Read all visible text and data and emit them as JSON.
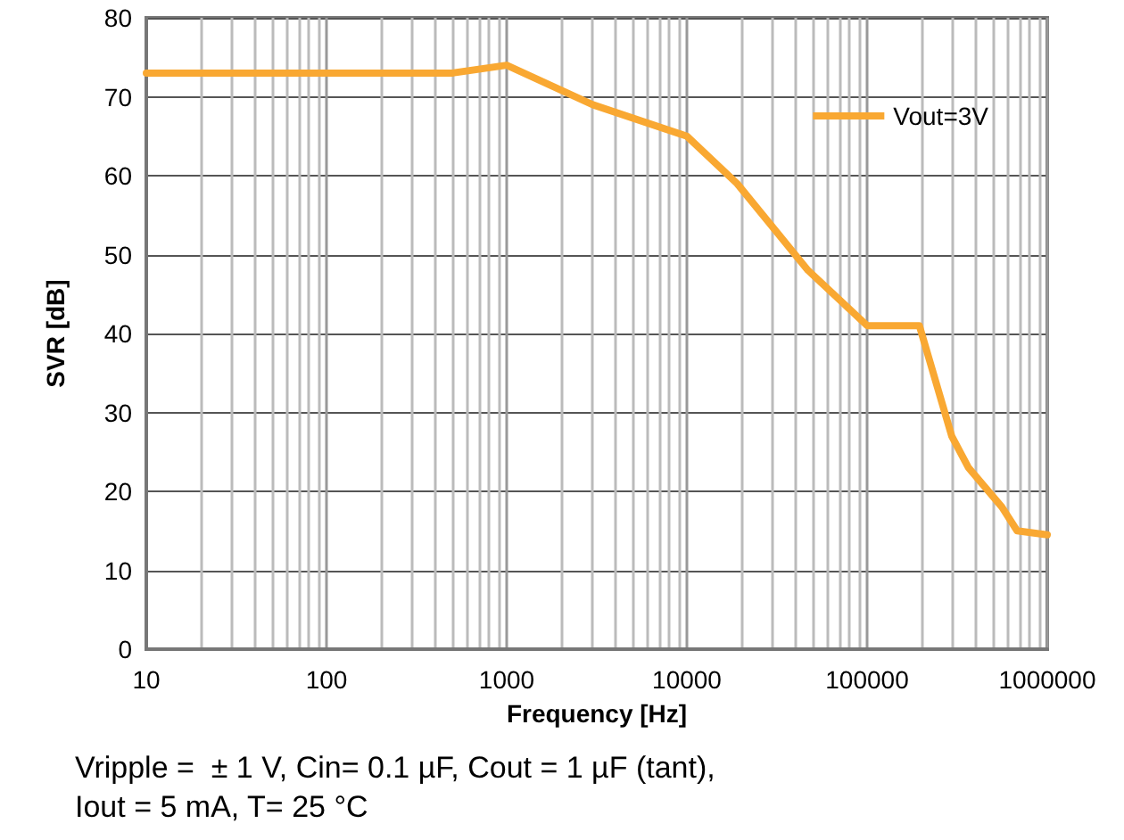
{
  "chart_data": {
    "type": "line",
    "xlabel": "Frequency [Hz]",
    "ylabel": "SVR [dB]",
    "series": [
      {
        "name": "Vout=3V",
        "color": "#f9a832",
        "x": [
          10,
          500,
          1000,
          3000,
          10000,
          19000,
          47000,
          100000,
          195000,
          295000,
          365000,
          560000,
          680000,
          1000000
        ],
        "values": [
          73,
          73,
          74,
          69,
          65,
          59,
          48,
          41,
          41,
          27,
          23,
          18,
          15,
          14.5
        ]
      }
    ],
    "xlim": [
      10,
      1000000
    ],
    "xticks": [
      10,
      100,
      1000,
      10000,
      100000,
      1000000
    ],
    "ylim": [
      0,
      80
    ],
    "yticks": [
      0,
      10,
      20,
      30,
      40,
      50,
      60,
      70,
      80
    ],
    "log": "x",
    "grid": true,
    "legend": "top right",
    "marker": "none",
    "line_style": "solid",
    "annotations": [
      "Vripple =  ± 1 V, Cin= 0.1 µF, Cout = 1 µF (tant),",
      "Iout = 5 mA, T= 25 °C"
    ]
  }
}
